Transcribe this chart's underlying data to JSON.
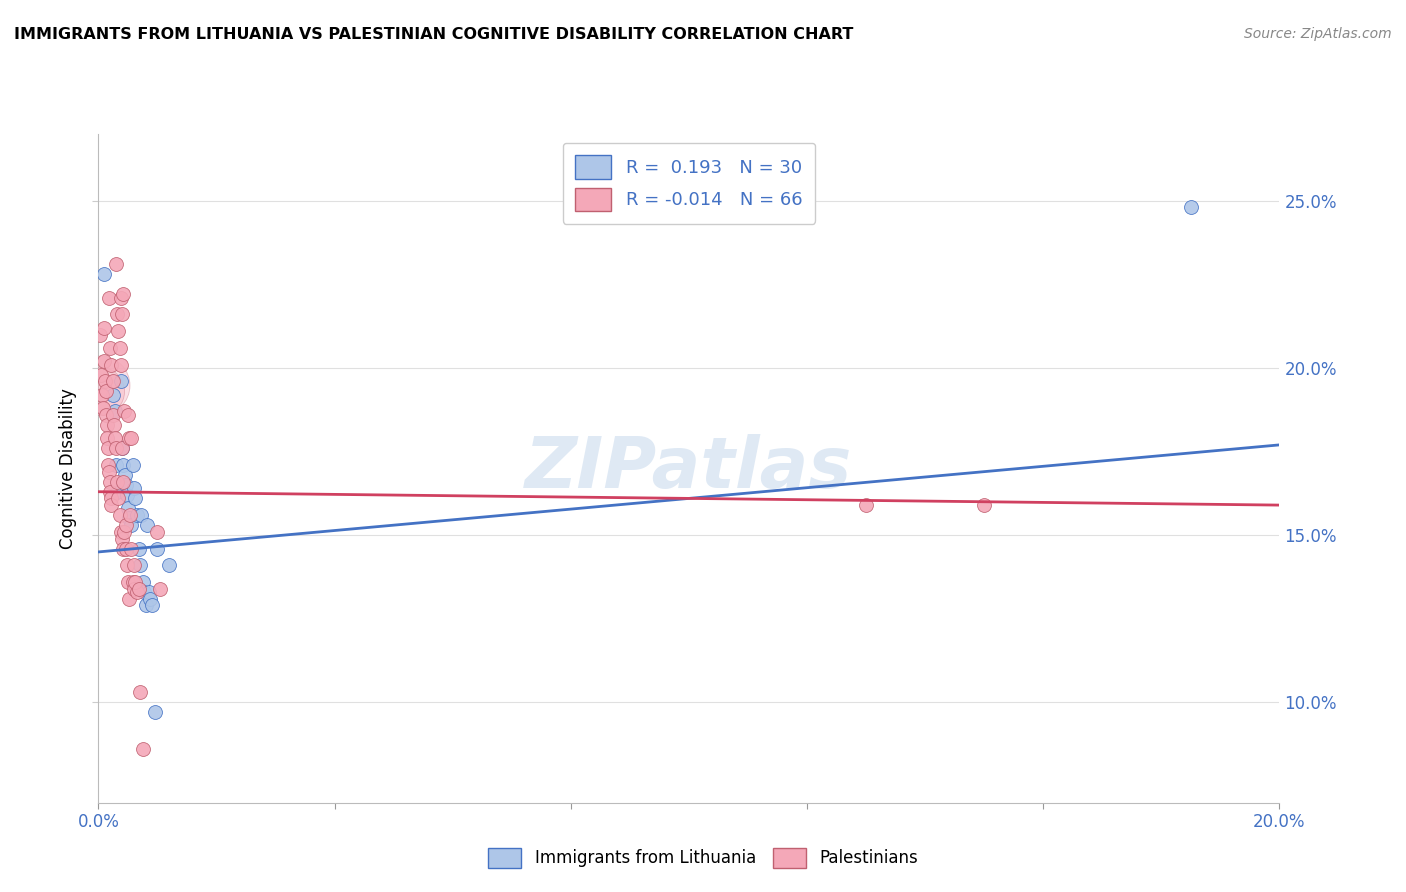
{
  "title": "IMMIGRANTS FROM LITHUANIA VS PALESTINIAN COGNITIVE DISABILITY CORRELATION CHART",
  "source": "Source: ZipAtlas.com",
  "ylabel": "Cognitive Disability",
  "xmin": 0.0,
  "xmax": 0.2,
  "ymin": 0.07,
  "ymax": 0.27,
  "color_blue": "#aec6e8",
  "color_pink": "#f4a8b8",
  "line_color_blue": "#4472c4",
  "line_color_pink": "#d04060",
  "blue_points": [
    [
      0.001,
      0.228
    ],
    [
      0.0025,
      0.192
    ],
    [
      0.0028,
      0.187
    ],
    [
      0.003,
      0.171
    ],
    [
      0.0032,
      0.163
    ],
    [
      0.0038,
      0.196
    ],
    [
      0.004,
      0.176
    ],
    [
      0.0042,
      0.171
    ],
    [
      0.0045,
      0.168
    ],
    [
      0.0047,
      0.165
    ],
    [
      0.0048,
      0.162
    ],
    [
      0.005,
      0.158
    ],
    [
      0.0052,
      0.155
    ],
    [
      0.0055,
      0.153
    ],
    [
      0.0058,
      0.171
    ],
    [
      0.006,
      0.164
    ],
    [
      0.0062,
      0.161
    ],
    [
      0.0065,
      0.156
    ],
    [
      0.0068,
      0.146
    ],
    [
      0.007,
      0.141
    ],
    [
      0.0072,
      0.156
    ],
    [
      0.0075,
      0.136
    ],
    [
      0.0078,
      0.133
    ],
    [
      0.008,
      0.129
    ],
    [
      0.0082,
      0.153
    ],
    [
      0.0085,
      0.133
    ],
    [
      0.0088,
      0.131
    ],
    [
      0.009,
      0.129
    ],
    [
      0.0095,
      0.097
    ],
    [
      0.01,
      0.146
    ],
    [
      0.012,
      0.141
    ],
    [
      0.185,
      0.248
    ]
  ],
  "pink_points": [
    [
      0.0003,
      0.21
    ],
    [
      0.0005,
      0.198
    ],
    [
      0.0006,
      0.192
    ],
    [
      0.0007,
      0.188
    ],
    [
      0.0009,
      0.212
    ],
    [
      0.001,
      0.202
    ],
    [
      0.0011,
      0.196
    ],
    [
      0.0012,
      0.193
    ],
    [
      0.0013,
      0.186
    ],
    [
      0.0014,
      0.183
    ],
    [
      0.0015,
      0.179
    ],
    [
      0.0016,
      0.176
    ],
    [
      0.0017,
      0.171
    ],
    [
      0.0018,
      0.169
    ],
    [
      0.0019,
      0.166
    ],
    [
      0.002,
      0.163
    ],
    [
      0.0021,
      0.161
    ],
    [
      0.0022,
      0.159
    ],
    [
      0.0018,
      0.221
    ],
    [
      0.002,
      0.206
    ],
    [
      0.0022,
      0.201
    ],
    [
      0.0024,
      0.196
    ],
    [
      0.0025,
      0.186
    ],
    [
      0.0026,
      0.183
    ],
    [
      0.0028,
      0.179
    ],
    [
      0.003,
      0.176
    ],
    [
      0.0032,
      0.166
    ],
    [
      0.0034,
      0.161
    ],
    [
      0.0036,
      0.156
    ],
    [
      0.0038,
      0.151
    ],
    [
      0.004,
      0.149
    ],
    [
      0.0042,
      0.146
    ],
    [
      0.003,
      0.231
    ],
    [
      0.0032,
      0.216
    ],
    [
      0.0034,
      0.211
    ],
    [
      0.0036,
      0.206
    ],
    [
      0.0038,
      0.201
    ],
    [
      0.004,
      0.176
    ],
    [
      0.0042,
      0.166
    ],
    [
      0.0044,
      0.151
    ],
    [
      0.0046,
      0.146
    ],
    [
      0.0038,
      0.221
    ],
    [
      0.004,
      0.216
    ],
    [
      0.0042,
      0.222
    ],
    [
      0.0044,
      0.187
    ],
    [
      0.0046,
      0.153
    ],
    [
      0.0048,
      0.141
    ],
    [
      0.005,
      0.136
    ],
    [
      0.0051,
      0.131
    ],
    [
      0.005,
      0.186
    ],
    [
      0.0052,
      0.179
    ],
    [
      0.0054,
      0.156
    ],
    [
      0.0056,
      0.146
    ],
    [
      0.0058,
      0.136
    ],
    [
      0.006,
      0.134
    ],
    [
      0.0055,
      0.179
    ],
    [
      0.006,
      0.141
    ],
    [
      0.0065,
      0.133
    ],
    [
      0.0062,
      0.136
    ],
    [
      0.0068,
      0.134
    ],
    [
      0.007,
      0.103
    ],
    [
      0.0075,
      0.086
    ],
    [
      0.01,
      0.151
    ],
    [
      0.0105,
      0.134
    ],
    [
      0.13,
      0.159
    ],
    [
      0.15,
      0.159
    ]
  ],
  "blue_line": {
    "x0": 0.0,
    "x1": 0.2,
    "y0": 0.145,
    "y1": 0.177
  },
  "pink_line": {
    "x0": 0.0,
    "x1": 0.2,
    "y0": 0.163,
    "y1": 0.159
  },
  "watermark": "ZIPatlas",
  "background_color": "#ffffff",
  "grid_color": "#e0e0e0"
}
